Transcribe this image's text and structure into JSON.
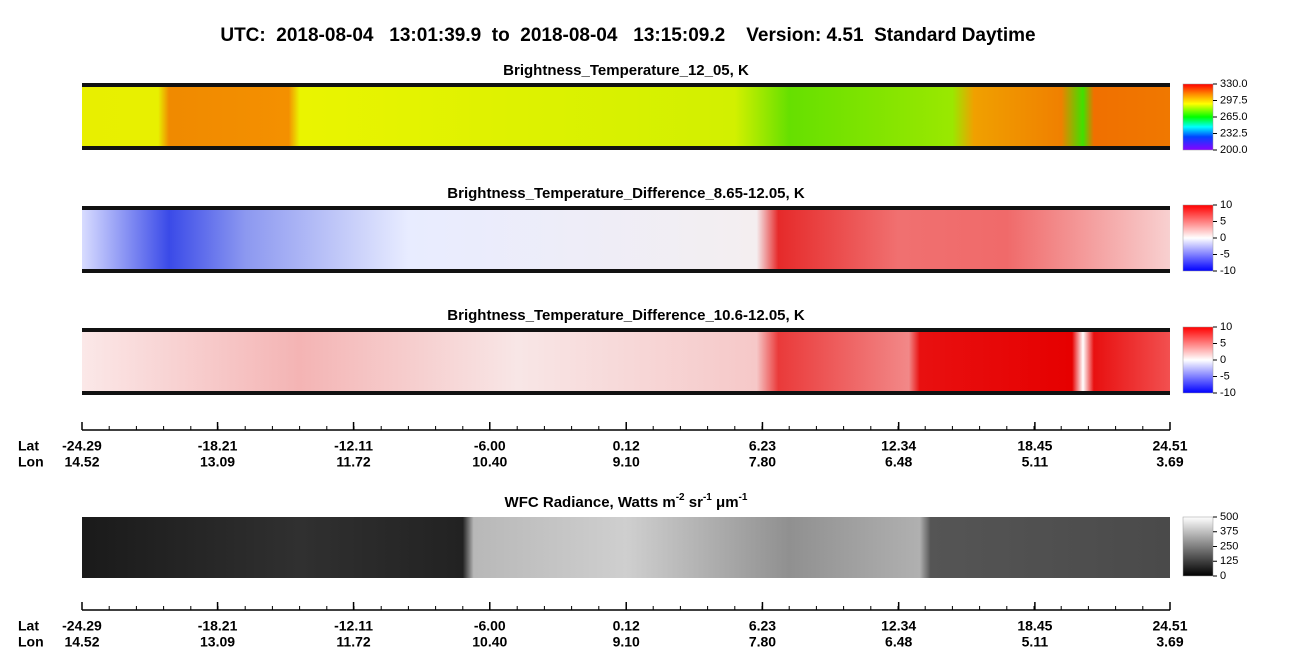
{
  "title": "UTC:  2018-08-04   13:01:39.9  to  2018-08-04   13:15:09.2    Version: 4.51  Standard Daytime",
  "panels": [
    {
      "title": [
        "Brightness_Temperature_12_05, K"
      ],
      "colormap": "rainbow",
      "colorbar": {
        "lim": [
          200,
          330
        ],
        "ticks": [
          {
            "value": 330,
            "label": "330.0"
          },
          {
            "value": 297.5,
            "label": "297.5"
          },
          {
            "value": 265,
            "label": "265.0"
          },
          {
            "value": 232.5,
            "label": "232.5"
          },
          {
            "value": 200,
            "label": "200.0"
          }
        ]
      }
    },
    {
      "title": [
        "Brightness_Temperature_Difference_8.65-12.05, K"
      ],
      "colormap": "diff1",
      "colorbar": {
        "lim": [
          -10,
          10
        ],
        "ticks": [
          10,
          5,
          0,
          -5,
          -10
        ]
      }
    },
    {
      "title": [
        "Brightness_Temperature_Difference_10.6-12.05, K"
      ],
      "colormap": "diff2",
      "colorbar": {
        "lim": [
          -10,
          10
        ],
        "ticks": [
          10,
          5,
          0,
          -5,
          -10
        ]
      }
    },
    {
      "title": [
        "WFC Radiance, Watts m",
        "-2",
        " sr",
        "-1",
        " μm",
        "-1"
      ],
      "colormap": "gray",
      "colorbar": {
        "lim": [
          0,
          500
        ],
        "ticks": [
          500,
          375,
          250,
          125,
          0
        ]
      }
    }
  ],
  "axis": {
    "lat_label": "Lat",
    "lon_label": "Lon",
    "latlim": [
      -24.29,
      24.51
    ],
    "lat": [
      -24.29,
      -18.21,
      -12.11,
      {
        "value": -6,
        "label": "-6.00"
      },
      0.12,
      6.23,
      12.34,
      18.45,
      24.51
    ],
    "lon": [
      14.52,
      13.09,
      11.72,
      {
        "value": 10.4,
        "label": "10.40"
      },
      {
        "value": 9.1,
        "label": "9.10"
      },
      {
        "value": 7.8,
        "label": "7.80"
      },
      6.48,
      5.11,
      3.69
    ]
  }
}
